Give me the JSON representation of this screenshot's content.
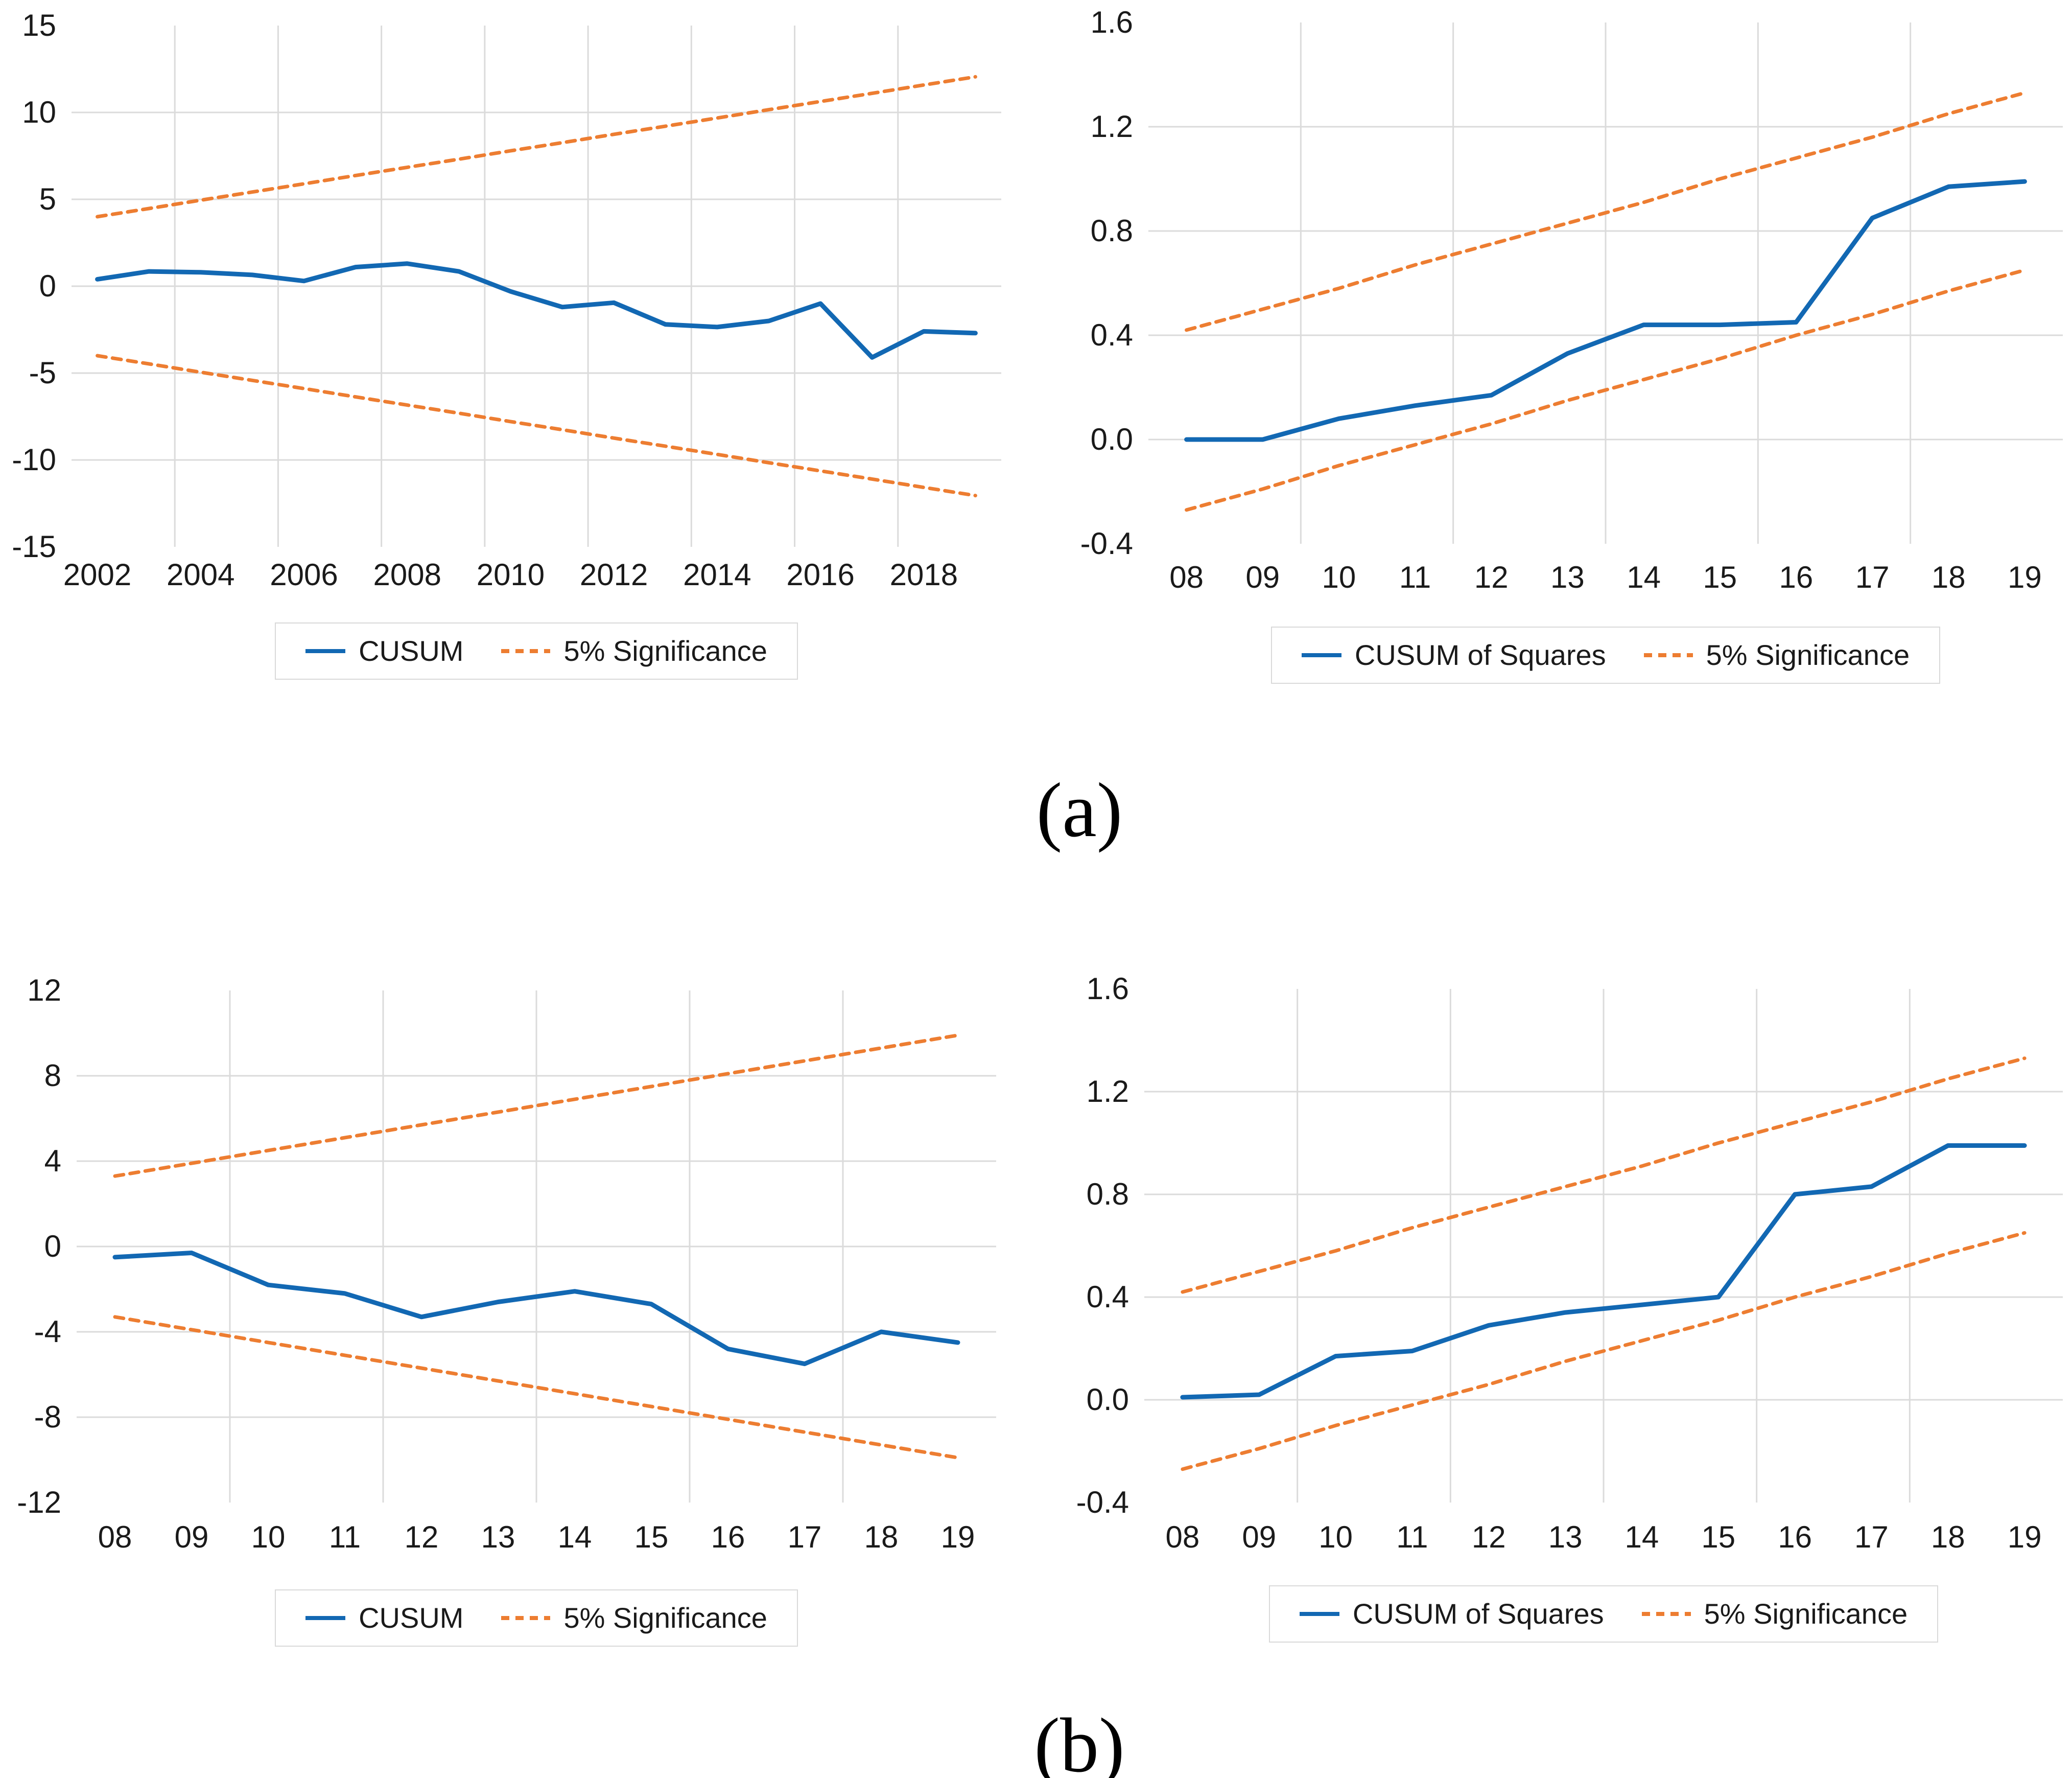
{
  "page": {
    "captions": {
      "a": "(a)",
      "b": "(b)"
    }
  },
  "colors": {
    "cusum": "#1268B3",
    "significance": "#ED7D31",
    "grid": "#DBDBDB",
    "text": "#1A1A1A",
    "legend_border": "#D9D9D9",
    "background": "#FFFFFF"
  },
  "chart_data": [
    {
      "id": "panel-a-cusum",
      "type": "line",
      "title": "",
      "xlabel": "",
      "ylabel": "",
      "categories": [
        "2002",
        "2003",
        "2004",
        "2005",
        "2006",
        "2007",
        "2008",
        "2009",
        "2010",
        "2011",
        "2012",
        "2013",
        "2014",
        "2015",
        "2016",
        "2017",
        "2018",
        "2019"
      ],
      "x_tick_labels": [
        "2002",
        "2004",
        "2006",
        "2008",
        "2010",
        "2012",
        "2014",
        "2016",
        "2018"
      ],
      "yticks": [
        15,
        10,
        5,
        0,
        -5,
        -10,
        -15
      ],
      "ytick_labels": [
        "15",
        "10",
        "5",
        "0",
        "-5",
        "-10",
        "-15"
      ],
      "ylim": [
        -15,
        15
      ],
      "grid": true,
      "legend_position": "bottom-center",
      "series": [
        {
          "name": "CUSUM",
          "line": "solid",
          "color": "cusum",
          "values": [
            0.4,
            0.85,
            0.8,
            0.65,
            0.3,
            1.1,
            1.3,
            0.85,
            -0.3,
            -1.2,
            -0.95,
            -2.2,
            -2.35,
            -2.0,
            -1.0,
            -4.1,
            -2.6,
            -2.7
          ]
        },
        {
          "name": "5% Significance (upper)",
          "line": "dashed",
          "color": "significance",
          "values": [
            4.0,
            4.47,
            4.95,
            5.42,
            5.89,
            6.37,
            6.84,
            7.31,
            7.79,
            8.26,
            8.74,
            9.21,
            9.68,
            10.16,
            10.63,
            11.1,
            11.58,
            12.05
          ]
        },
        {
          "name": "5% Significance (lower)",
          "line": "dashed",
          "color": "significance",
          "values": [
            -4.0,
            -4.47,
            -4.95,
            -5.42,
            -5.89,
            -6.37,
            -6.84,
            -7.31,
            -7.79,
            -8.26,
            -8.74,
            -9.21,
            -9.68,
            -10.16,
            -10.63,
            -11.1,
            -11.58,
            -12.05
          ]
        }
      ],
      "legend": [
        {
          "label": "CUSUM",
          "swatch": "solid"
        },
        {
          "label": "5% Significance",
          "swatch": "dashed"
        }
      ]
    },
    {
      "id": "panel-a-cusum-of-squares",
      "type": "line",
      "title": "",
      "xlabel": "",
      "ylabel": "",
      "categories": [
        "08",
        "09",
        "10",
        "11",
        "12",
        "13",
        "14",
        "15",
        "16",
        "17",
        "18",
        "19"
      ],
      "x_tick_labels": [
        "08",
        "09",
        "10",
        "11",
        "12",
        "13",
        "14",
        "15",
        "16",
        "17",
        "18",
        "19"
      ],
      "yticks": [
        1.6,
        1.2,
        0.8,
        0.4,
        0.0,
        -0.4
      ],
      "ytick_labels": [
        "1.6",
        "1.2",
        "0.8",
        "0.4",
        "0.0",
        "-0.4"
      ],
      "ylim": [
        -0.4,
        1.6
      ],
      "grid": true,
      "legend_position": "bottom-center",
      "series": [
        {
          "name": "CUSUM of Squares",
          "line": "solid",
          "color": "cusum",
          "values": [
            0.0,
            0.0,
            0.08,
            0.13,
            0.17,
            0.33,
            0.44,
            0.44,
            0.45,
            0.85,
            0.97,
            0.99
          ]
        },
        {
          "name": "5% Significance (upper)",
          "line": "dashed",
          "color": "significance",
          "values": [
            0.42,
            0.5,
            0.58,
            0.67,
            0.75,
            0.83,
            0.91,
            1.0,
            1.08,
            1.16,
            1.25,
            1.33
          ]
        },
        {
          "name": "5% Significance (lower)",
          "line": "dashed",
          "color": "significance",
          "values": [
            -0.27,
            -0.19,
            -0.1,
            -0.02,
            0.06,
            0.15,
            0.23,
            0.31,
            0.4,
            0.48,
            0.57,
            0.65
          ]
        }
      ],
      "legend": [
        {
          "label": "CUSUM of Squares",
          "swatch": "solid"
        },
        {
          "label": "5% Significance",
          "swatch": "dashed"
        }
      ]
    },
    {
      "id": "panel-b-cusum",
      "type": "line",
      "title": "",
      "xlabel": "",
      "ylabel": "",
      "categories": [
        "08",
        "09",
        "10",
        "11",
        "12",
        "13",
        "14",
        "15",
        "16",
        "17",
        "18",
        "19"
      ],
      "x_tick_labels": [
        "08",
        "09",
        "10",
        "11",
        "12",
        "13",
        "14",
        "15",
        "16",
        "17",
        "18",
        "19"
      ],
      "yticks": [
        12,
        8,
        4,
        0,
        -4,
        -8,
        -12
      ],
      "ytick_labels": [
        "12",
        "8",
        "4",
        "0",
        "-4",
        "-8",
        "-12"
      ],
      "ylim": [
        -12,
        12
      ],
      "grid": true,
      "legend_position": "bottom-center",
      "series": [
        {
          "name": "CUSUM",
          "line": "solid",
          "color": "cusum",
          "values": [
            -0.5,
            -0.3,
            -1.8,
            -2.2,
            -3.3,
            -2.6,
            -2.1,
            -2.7,
            -4.8,
            -5.5,
            -4.0,
            -4.5
          ]
        },
        {
          "name": "5% Significance (upper)",
          "line": "dashed",
          "color": "significance",
          "values": [
            3.3,
            3.9,
            4.5,
            5.1,
            5.7,
            6.3,
            6.9,
            7.5,
            8.1,
            8.7,
            9.3,
            9.9
          ]
        },
        {
          "name": "5% Significance (lower)",
          "line": "dashed",
          "color": "significance",
          "values": [
            -3.3,
            -3.9,
            -4.5,
            -5.1,
            -5.7,
            -6.3,
            -6.9,
            -7.5,
            -8.1,
            -8.7,
            -9.3,
            -9.9
          ]
        }
      ],
      "legend": [
        {
          "label": "CUSUM",
          "swatch": "solid"
        },
        {
          "label": "5% Significance",
          "swatch": "dashed"
        }
      ]
    },
    {
      "id": "panel-b-cusum-of-squares",
      "type": "line",
      "title": "",
      "xlabel": "",
      "ylabel": "",
      "categories": [
        "08",
        "09",
        "10",
        "11",
        "12",
        "13",
        "14",
        "15",
        "16",
        "17",
        "18",
        "19"
      ],
      "x_tick_labels": [
        "08",
        "09",
        "10",
        "11",
        "12",
        "13",
        "14",
        "15",
        "16",
        "17",
        "18",
        "19"
      ],
      "yticks": [
        1.6,
        1.2,
        0.8,
        0.4,
        0.0,
        -0.4
      ],
      "ytick_labels": [
        "1.6",
        "1.2",
        "0.8",
        "0.4",
        "0.0",
        "-0.4"
      ],
      "ylim": [
        -0.4,
        1.6
      ],
      "grid": true,
      "legend_position": "bottom-center",
      "series": [
        {
          "name": "CUSUM of Squares",
          "line": "solid",
          "color": "cusum",
          "values": [
            0.01,
            0.02,
            0.17,
            0.19,
            0.29,
            0.34,
            0.37,
            0.4,
            0.8,
            0.83,
            0.99,
            0.99
          ]
        },
        {
          "name": "5% Significance (upper)",
          "line": "dashed",
          "color": "significance",
          "values": [
            0.42,
            0.5,
            0.58,
            0.67,
            0.75,
            0.83,
            0.91,
            1.0,
            1.08,
            1.16,
            1.25,
            1.33
          ]
        },
        {
          "name": "5% Significance (lower)",
          "line": "dashed",
          "color": "significance",
          "values": [
            -0.27,
            -0.19,
            -0.1,
            -0.02,
            0.06,
            0.15,
            0.23,
            0.31,
            0.4,
            0.48,
            0.57,
            0.65
          ]
        }
      ],
      "legend": [
        {
          "label": "CUSUM of Squares",
          "swatch": "solid"
        },
        {
          "label": "5% Significance",
          "swatch": "dashed"
        }
      ]
    }
  ]
}
